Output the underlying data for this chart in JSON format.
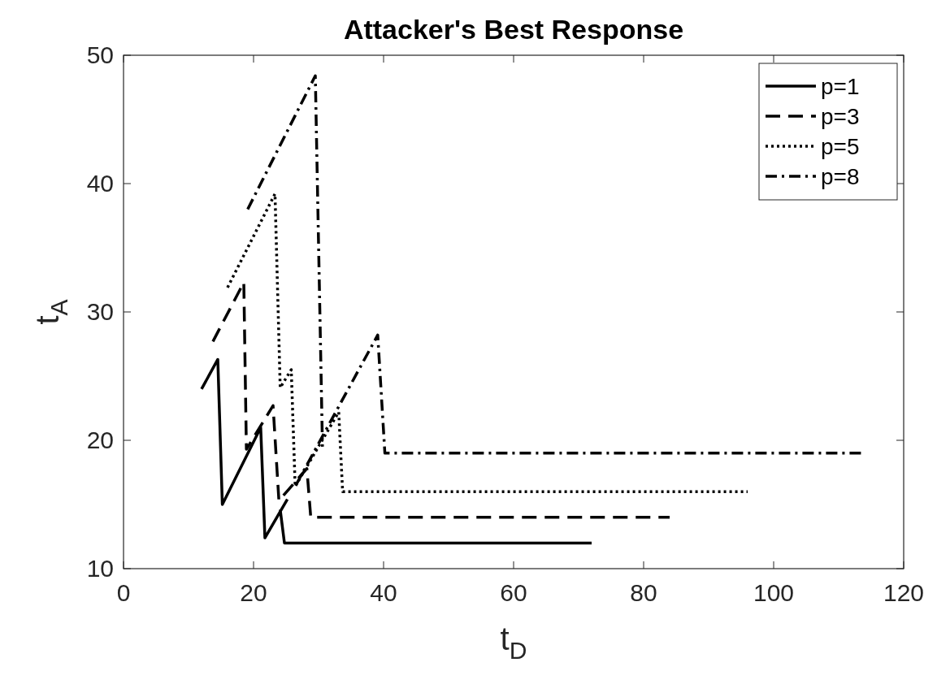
{
  "chart_data": {
    "type": "line",
    "title": "Attacker's Best Response",
    "xlabel": "t$_{D}$",
    "ylabel": "t$_{A}$",
    "xlim": [
      0,
      120
    ],
    "xticks": [
      0,
      20,
      40,
      60,
      80,
      100,
      120
    ],
    "ylim": [
      10,
      50
    ],
    "yticks": [
      10,
      20,
      30,
      40,
      50
    ],
    "grid": false,
    "legend": "top right",
    "series": [
      {
        "name": "p=1",
        "color": "#000000",
        "line_style": "solid",
        "x": [
          12,
          14.5,
          15.2,
          21.1,
          21.75,
          25.2,
          null,
          24.1,
          24.75,
          72
        ],
        "values": [
          24,
          26.3,
          15,
          21,
          12.4,
          15.4,
          null,
          14.6,
          12,
          12
        ]
      },
      {
        "name": "p=3",
        "color": "#000000",
        "line_style": "dashed",
        "x": [
          13.75,
          18.5,
          18.9,
          23,
          23.9,
          28.2,
          28.8,
          84
        ],
        "values": [
          27.7,
          32.3,
          19.3,
          22.7,
          15.3,
          17.8,
          14,
          14
        ]
      },
      {
        "name": "p=5",
        "color": "#000000",
        "line_style": "dotted",
        "x": [
          16,
          23.3,
          24.1,
          25.8,
          26.4,
          33.1,
          33.7,
          96
        ],
        "values": [
          31.9,
          39.2,
          24.1,
          25.5,
          16.4,
          22.2,
          16,
          16
        ]
      },
      {
        "name": "p=8",
        "color": "#000000",
        "line_style": "dashdot",
        "x": [
          19.1,
          29.5,
          30.6,
          null,
          26.5,
          39.1,
          40.2,
          114
        ],
        "values": [
          38,
          48.4,
          19.5,
          null,
          16.5,
          28.2,
          19,
          19
        ]
      }
    ]
  }
}
